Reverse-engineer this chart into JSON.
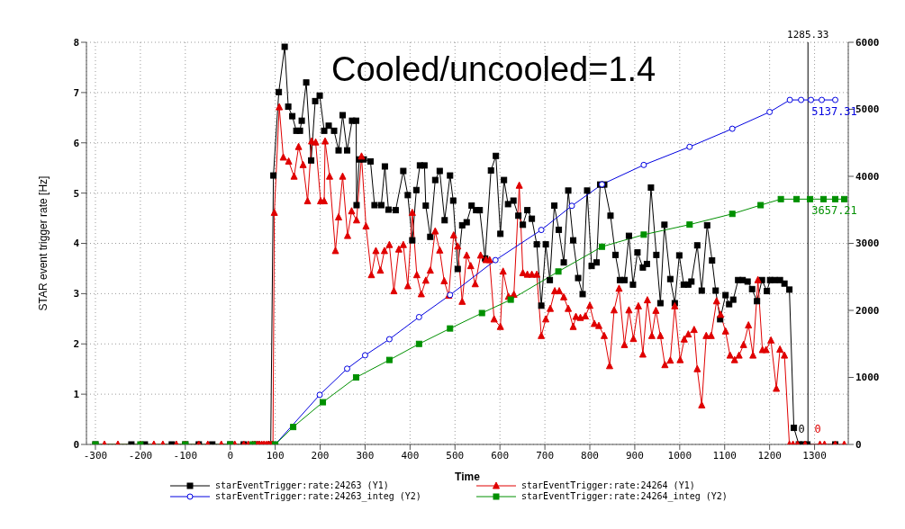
{
  "chart_data": {
    "type": "line",
    "xlabel": "Time",
    "ylabel": "STAR event trigger rate [Hz]",
    "xlim": [
      -320,
      1375
    ],
    "xticks": [
      -300,
      -200,
      -100,
      0,
      100,
      200,
      300,
      400,
      500,
      600,
      700,
      800,
      900,
      1000,
      1100,
      1200,
      1300
    ],
    "ylim": [
      0,
      8
    ],
    "yticks": [
      0,
      1,
      2,
      3,
      4,
      5,
      6,
      7,
      8
    ],
    "y2lim": [
      0,
      6000
    ],
    "y2ticks": [
      0,
      1000,
      2000,
      3000,
      4000,
      5000,
      6000
    ],
    "grid": true,
    "legend": "bottom",
    "line_style": "solid",
    "ref_lines": [
      {
        "axis": "x",
        "value": 1285.33,
        "label": "1285.33",
        "color": "#000000"
      }
    ],
    "annotations": [
      {
        "text": "0",
        "x": 1256,
        "y": 0.3
      },
      {
        "text": "0",
        "x": 1292,
        "y": 0.3
      },
      {
        "text": "5137.31",
        "x": 1285.33,
        "y": 6.85
      },
      {
        "text": "3657.21",
        "x": 1285.33,
        "y": 4.88
      },
      "Cooled/uncooled=1.4"
    ],
    "series": [
      {
        "name": "starEventTrigger:rate:24263 (Y1)",
        "color": "#000000",
        "marker": "square",
        "x": [
          -300,
          -220,
          -190,
          -130,
          -100,
          -70,
          -40,
          0,
          30,
          60,
          90,
          96,
          108,
          121,
          129,
          138,
          147,
          155,
          159,
          169,
          180,
          189,
          199,
          209,
          219,
          231,
          241,
          250,
          260,
          271,
          280,
          281,
          287,
          297,
          312,
          321,
          336,
          344,
          352,
          368,
          385,
          395,
          405,
          414,
          422,
          432,
          435,
          445,
          456,
          466,
          477,
          489,
          496,
          506,
          516,
          526,
          537,
          547,
          555,
          567,
          580,
          591,
          601,
          609,
          618,
          630,
          641,
          651,
          661,
          671,
          682,
          692,
          702,
          711,
          721,
          731,
          742,
          752,
          763,
          774,
          784,
          794,
          804,
          815,
          823,
          832,
          846,
          857,
          867,
          877,
          887,
          896,
          906,
          918,
          927,
          936,
          948,
          957,
          966,
          979,
          989,
          999,
          1009,
          1019,
          1026,
          1039,
          1049,
          1061,
          1072,
          1080,
          1090,
          1102,
          1110,
          1119,
          1130,
          1140,
          1151,
          1161,
          1172,
          1183,
          1194,
          1201,
          1211,
          1223,
          1233,
          1244,
          1254,
          1265,
          1275,
          1284,
          1346
        ],
        "values": [
          0,
          0,
          0,
          0,
          0,
          0,
          0,
          0,
          0,
          0,
          0,
          5.35,
          7.01,
          7.91,
          6.72,
          6.53,
          6.24,
          6.24,
          6.44,
          7.2,
          5.65,
          6.83,
          6.94,
          6.24,
          6.34,
          6.24,
          5.85,
          6.55,
          5.85,
          6.44,
          6.44,
          4.76,
          5.67,
          5.67,
          5.63,
          4.76,
          4.76,
          5.53,
          4.67,
          4.66,
          5.44,
          4.96,
          4.06,
          5.06,
          5.55,
          5.55,
          4.75,
          4.13,
          5.26,
          5.44,
          4.46,
          5.35,
          4.85,
          3.49,
          4.36,
          4.42,
          4.75,
          4.66,
          4.66,
          3.7,
          5.45,
          5.74,
          4.19,
          5.26,
          4.78,
          4.85,
          4.55,
          4.37,
          4.66,
          4.49,
          3.98,
          2.76,
          3.98,
          3.27,
          4.75,
          4.27,
          3.62,
          5.05,
          4.06,
          3.31,
          2.99,
          5.05,
          3.55,
          3.62,
          5.17,
          5.17,
          4.55,
          3.77,
          3.27,
          3.27,
          4.15,
          3.18,
          3.82,
          3.52,
          3.59,
          5.11,
          3.77,
          2.81,
          4.37,
          3.29,
          2.81,
          3.76,
          3.18,
          3.18,
          3.24,
          3.96,
          3.06,
          4.36,
          3.66,
          3.06,
          2.49,
          2.97,
          2.79,
          2.88,
          3.27,
          3.27,
          3.24,
          3.09,
          2.85,
          3.27,
          3.05,
          3.27,
          3.27,
          3.27,
          3.2,
          3.08,
          0.33,
          0,
          0,
          0,
          0
        ]
      },
      {
        "name": "starEventTrigger:rate:24264 (Y1)",
        "color": "#e00000",
        "marker": "triangle",
        "x": [
          -280,
          -250,
          -200,
          -170,
          -150,
          -120,
          -100,
          -70,
          -50,
          -20,
          10,
          30,
          40,
          50,
          55,
          60,
          65,
          70,
          75,
          80,
          85,
          90,
          95,
          98,
          109,
          118,
          130,
          142,
          152,
          162,
          172,
          181,
          190,
          201,
          209,
          211,
          221,
          234,
          241,
          250,
          261,
          270,
          281,
          292,
          302,
          314,
          324,
          334,
          343,
          354,
          364,
          375,
          385,
          395,
          405,
          415,
          425,
          435,
          445,
          456,
          466,
          476,
          486,
          497,
          506,
          516,
          526,
          535,
          545,
          557,
          569,
          577,
          587,
          601,
          607,
          619,
          631,
          643,
          651,
          661,
          671,
          682,
          692,
          702,
          712,
          722,
          732,
          742,
          752,
          763,
          769,
          779,
          790,
          800,
          810,
          820,
          832,
          844,
          854,
          865,
          877,
          887,
          897,
          908,
          918,
          928,
          938,
          947,
          957,
          967,
          979,
          989,
          1001,
          1010,
          1019,
          1032,
          1039,
          1049,
          1059,
          1070,
          1082,
          1091,
          1102,
          1112,
          1122,
          1132,
          1142,
          1153,
          1163,
          1174,
          1184,
          1192,
          1203,
          1215,
          1223,
          1233,
          1244,
          1252,
          1262,
          1279,
          1312,
          1322,
          1346,
          1366
        ],
        "values": [
          0,
          0,
          0,
          0,
          0,
          0,
          0,
          0,
          0,
          0,
          0,
          0,
          0,
          0,
          0,
          0,
          0,
          0,
          0,
          0,
          0,
          0,
          0,
          4.61,
          6.71,
          5.71,
          5.63,
          5.33,
          5.92,
          5.56,
          4.84,
          6.03,
          6.01,
          4.84,
          4.84,
          6.03,
          5.33,
          3.85,
          4.52,
          5.33,
          4.15,
          4.64,
          4.46,
          5.73,
          4.34,
          3.37,
          3.85,
          3.46,
          3.85,
          3.97,
          3.05,
          3.88,
          3.97,
          3.15,
          4.61,
          3.37,
          2.99,
          3.26,
          3.46,
          4.24,
          3.86,
          3.25,
          2.96,
          4.16,
          3.94,
          2.84,
          3.76,
          3.55,
          3.19,
          3.76,
          3.67,
          3.67,
          2.49,
          2.34,
          3.44,
          2.94,
          2.98,
          5.15,
          3.41,
          3.38,
          3.38,
          3.38,
          2.16,
          2.49,
          2.7,
          3.05,
          3.05,
          2.93,
          2.7,
          2.34,
          2.54,
          2.52,
          2.55,
          2.76,
          2.4,
          2.36,
          2.16,
          1.56,
          2.67,
          3.1,
          1.98,
          2.67,
          2.1,
          2.75,
          1.79,
          2.87,
          2.16,
          2.66,
          2.16,
          1.58,
          1.67,
          2.75,
          1.68,
          2.09,
          2.19,
          2.28,
          1.5,
          0.78,
          2.16,
          2.16,
          2.85,
          2.58,
          2.25,
          1.77,
          1.68,
          1.77,
          1.98,
          2.37,
          1.77,
          3.27,
          1.88,
          1.88,
          2.07,
          1.11,
          1.89,
          1.77,
          0,
          0,
          0,
          0,
          0,
          0,
          0,
          0
        ]
      },
      {
        "name": "starEventTrigger:rate:24263_integ (Y2)",
        "color": "#0000e0",
        "marker": "circle",
        "axis": "y2",
        "x": [
          100,
          199,
          260,
          300,
          354,
          420,
          489,
          590,
          692,
          760,
          827,
          920,
          1022,
          1117,
          1200,
          1245,
          1270,
          1292,
          1316,
          1346
        ],
        "values": [
          0,
          740,
          1130,
          1330,
          1570,
          1900,
          2230,
          2750,
          3200,
          3560,
          3880,
          4170,
          4440,
          4710,
          4960,
          5140,
          5140,
          5140,
          5140,
          5140
        ]
      },
      {
        "name": "starEventTrigger:rate:24264_integ (Y2)",
        "color": "#009000",
        "marker": "square",
        "axis": "y2",
        "x": [
          -300,
          -200,
          -100,
          0,
          50,
          100,
          140,
          206,
          280,
          354,
          420,
          489,
          560,
          624,
          730,
          827,
          920,
          1022,
          1117,
          1180,
          1225,
          1260,
          1290,
          1320,
          1346,
          1366
        ],
        "values": [
          0,
          0,
          0,
          0,
          0,
          0,
          260,
          630,
          1000,
          1260,
          1500,
          1730,
          1960,
          2160,
          2580,
          2950,
          3130,
          3280,
          3440,
          3570,
          3660,
          3660,
          3660,
          3660,
          3660,
          3660
        ]
      }
    ]
  }
}
